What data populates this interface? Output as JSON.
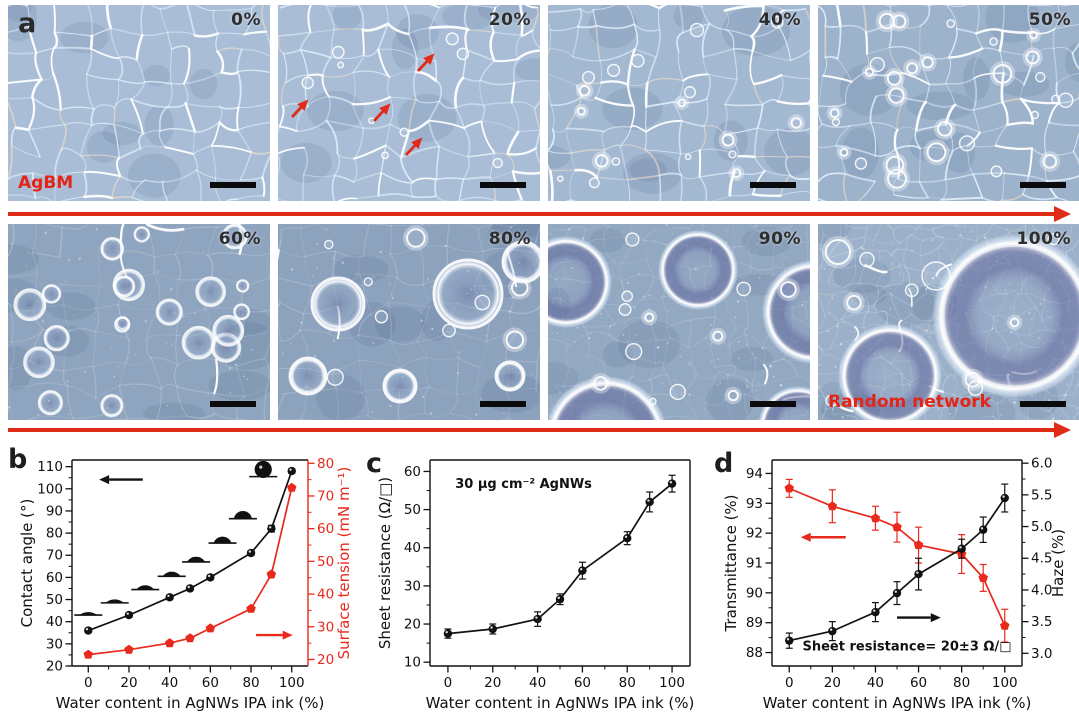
{
  "panel_a": {
    "letter": "a",
    "agbm_label": "AgBM",
    "random_network_label": "Random network",
    "tiles": [
      {
        "label": "0%",
        "water": 0,
        "has_red_arrows": false
      },
      {
        "label": "20%",
        "water": 20,
        "has_red_arrows": true
      },
      {
        "label": "40%",
        "water": 40,
        "has_red_arrows": false
      },
      {
        "label": "50%",
        "water": 50,
        "has_red_arrows": false
      },
      {
        "label": "60%",
        "water": 60,
        "has_red_arrows": false
      },
      {
        "label": "80%",
        "water": 80,
        "has_red_arrows": false
      },
      {
        "label": "90%",
        "water": 90,
        "has_red_arrows": false
      },
      {
        "label": "100%",
        "water": 100,
        "has_red_arrows": false
      }
    ]
  },
  "panels": {
    "b": "b",
    "c": "c",
    "d": "d"
  },
  "colors": {
    "accent_red": "#e8291c",
    "arrow_red": "#de2c16",
    "black": "#111111"
  },
  "chart_data": [
    {
      "panel": "b",
      "type": "line",
      "x": [
        0,
        20,
        40,
        50,
        60,
        80,
        90,
        100
      ],
      "xlabel": "Water content in AgNWs IPA ink (%)",
      "xlim": [
        -8,
        108
      ],
      "xticks": [
        0,
        20,
        40,
        60,
        80,
        100
      ],
      "xminors": [
        10,
        30,
        50,
        70,
        90
      ],
      "left_axis": {
        "label": "Contact angle (°)",
        "lim": [
          20,
          113
        ],
        "ticks": [
          20,
          30,
          40,
          50,
          60,
          70,
          80,
          90,
          100,
          110
        ],
        "minors": [
          25,
          35,
          45,
          55,
          65,
          75,
          85,
          95,
          105
        ],
        "color": "#111111"
      },
      "right_axis": {
        "label": "Surface tension (mN m⁻¹)",
        "lim": [
          18,
          81
        ],
        "ticks": [
          20,
          30,
          40,
          50,
          60,
          70,
          80
        ],
        "minors": [
          25,
          35,
          45,
          55,
          65,
          75
        ],
        "color": "#e8291c"
      },
      "series": [
        {
          "name": "Contact angle",
          "axis": "left",
          "color": "#111111",
          "marker": "circle",
          "values": [
            36,
            43,
            51,
            55,
            60,
            71,
            82,
            108
          ],
          "errors": [
            1,
            1,
            1,
            1,
            1,
            1,
            1.5,
            1
          ]
        },
        {
          "name": "Surface tension",
          "axis": "right",
          "color": "#e8291c",
          "marker": "pentagon",
          "values": [
            21.5,
            23,
            25,
            26.5,
            29.5,
            35.5,
            46,
            72.5
          ],
          "errors": [
            0,
            0,
            0,
            0,
            0,
            0,
            0,
            0
          ]
        }
      ],
      "droplets": {
        "x": [
          0,
          13,
          28,
          41,
          53,
          66,
          76,
          86
        ],
        "y": [
          43,
          48.5,
          54.5,
          60.5,
          67,
          75.5,
          86.5,
          105.5
        ],
        "angles": [
          36,
          43,
          51,
          55,
          60,
          71,
          82,
          108
        ]
      },
      "arrows": [
        {
          "fx1": 0.3,
          "fy1": 0.095,
          "fx2": 0.115,
          "fy2": 0.095,
          "color": "#111111"
        },
        {
          "fx1": 0.78,
          "fy1": 0.85,
          "fx2": 0.935,
          "fy2": 0.85,
          "color": "#e8291c"
        }
      ],
      "annotations": []
    },
    {
      "panel": "c",
      "type": "line",
      "x": [
        0,
        20,
        40,
        50,
        60,
        80,
        90,
        100
      ],
      "xlabel": "Water content in AgNWs IPA ink (%)",
      "xlim": [
        -8,
        108
      ],
      "xticks": [
        0,
        20,
        40,
        60,
        80,
        100
      ],
      "xminors": [
        10,
        30,
        50,
        70,
        90
      ],
      "left_axis": {
        "label": "Sheet resistance (Ω/□)",
        "lim": [
          9,
          63
        ],
        "ticks": [
          10,
          20,
          30,
          40,
          50,
          60
        ],
        "minors": [
          15,
          25,
          35,
          45,
          55
        ],
        "color": "#111111"
      },
      "series": [
        {
          "name": "Sheet resistance",
          "axis": "left",
          "color": "#111111",
          "marker": "circle",
          "values": [
            17.5,
            18.7,
            21.3,
            26.5,
            34,
            42.5,
            52,
            56.8
          ],
          "errors": [
            1.2,
            1.3,
            1.9,
            1.4,
            2.2,
            1.7,
            2.6,
            2.2
          ]
        }
      ],
      "arrows": [],
      "annotations": [
        {
          "text": "30 μg cm⁻² AgNWs",
          "fx": 0.36,
          "fy": 0.135
        }
      ]
    },
    {
      "panel": "d",
      "type": "line",
      "x": [
        0,
        20,
        40,
        50,
        60,
        80,
        90,
        100
      ],
      "xlabel": "Water content in AgNWs IPA ink (%)",
      "xlim": [
        -8,
        108
      ],
      "xticks": [
        0,
        20,
        40,
        60,
        80,
        100
      ],
      "xminors": [
        10,
        30,
        50,
        70,
        90
      ],
      "left_axis": {
        "label": "Transmittance (%)",
        "lim": [
          87.55,
          94.45
        ],
        "ticks": [
          88,
          89,
          90,
          91,
          92,
          93,
          94
        ],
        "minors": [
          88.5,
          89.5,
          90.5,
          91.5,
          92.5,
          93.5
        ],
        "color": "#111111"
      },
      "right_axis": {
        "label": "Haze (%)",
        "lim": [
          2.8,
          6.05
        ],
        "ticks": [
          3.0,
          3.5,
          4.0,
          4.5,
          5.0,
          5.5,
          6.0
        ],
        "tick_labels": [
          "3.0",
          "3.5",
          "4.0",
          "4.5",
          "5.0",
          "5.5",
          "6.0"
        ],
        "minors": [
          3.25,
          3.75,
          4.25,
          4.75,
          5.25,
          5.75
        ],
        "color": "#111111"
      },
      "series": [
        {
          "name": "Transmittance",
          "axis": "left",
          "color": "#e8291c",
          "marker": "pentagon",
          "values": [
            93.5,
            92.9,
            92.5,
            92.2,
            91.6,
            91.3,
            90.5,
            88.9
          ],
          "errors": [
            0.3,
            0.55,
            0.4,
            0.5,
            0.6,
            0.65,
            0.45,
            0.55
          ]
        },
        {
          "name": "Haze",
          "axis": "right",
          "color": "#111111",
          "marker": "circle",
          "values": [
            3.2,
            3.35,
            3.65,
            3.95,
            4.25,
            4.65,
            4.95,
            5.45
          ],
          "errors": [
            0.12,
            0.15,
            0.15,
            0.18,
            0.25,
            0.15,
            0.2,
            0.22
          ]
        }
      ],
      "arrows": [
        {
          "fx1": 0.295,
          "fy1": 0.375,
          "fx2": 0.115,
          "fy2": 0.375,
          "color": "#e8291c"
        },
        {
          "fx1": 0.5,
          "fy1": 0.765,
          "fx2": 0.675,
          "fy2": 0.765,
          "color": "#111111"
        }
      ],
      "annotations": [
        {
          "text": "Sheet resistance= 20±3 Ω/□",
          "fx": 0.54,
          "fy": 0.925
        }
      ]
    }
  ]
}
